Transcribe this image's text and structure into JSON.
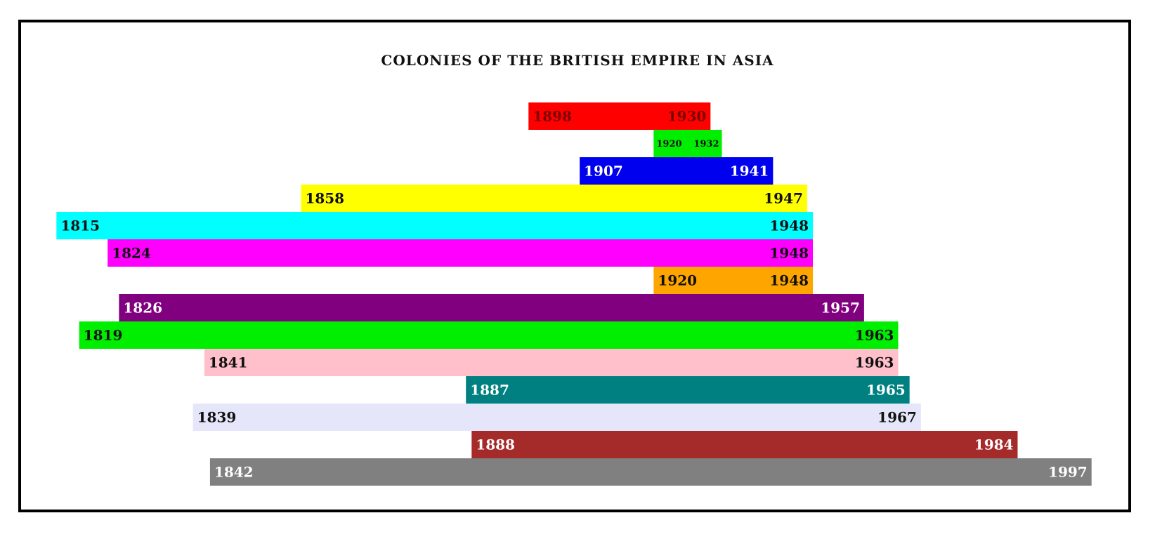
{
  "chart_data": {
    "type": "bar",
    "title": "COLONIES OF THE BRITISH EMPIRE IN ASIA",
    "xlabel": "",
    "ylabel": "",
    "xlim": [
      1811.5,
      2000
    ],
    "grid": false,
    "legend": "none",
    "bars": [
      {
        "start": 1898,
        "end": 1930,
        "start_label": "1898",
        "end_label": "1930",
        "color": "#ff0000",
        "label_color": "#7a0000",
        "label_size": "large"
      },
      {
        "start": 1920,
        "end": 1932,
        "start_label": "1920",
        "end_label": "1932",
        "color": "#00ee00",
        "label_color": "#111111",
        "label_size": "small"
      },
      {
        "start": 1907,
        "end": 1941,
        "start_label": "1907",
        "end_label": "1941",
        "color": "#0000ee",
        "label_color": "#ffffff",
        "label_size": "large"
      },
      {
        "start": 1858,
        "end": 1947,
        "start_label": "1858",
        "end_label": "1947",
        "color": "#ffff00",
        "label_color": "#111111",
        "label_size": "large"
      },
      {
        "start": 1815,
        "end": 1948,
        "start_label": "1815",
        "end_label": "1948",
        "color": "#00ffff",
        "label_color": "#111111",
        "label_size": "large"
      },
      {
        "start": 1824,
        "end": 1948,
        "start_label": "1824",
        "end_label": "1948",
        "color": "#ff00ff",
        "label_color": "#111111",
        "label_size": "large"
      },
      {
        "start": 1920,
        "end": 1948,
        "start_label": "1920",
        "end_label": "1948",
        "color": "#ffa500",
        "label_color": "#111111",
        "label_size": "large"
      },
      {
        "start": 1826,
        "end": 1957,
        "start_label": "1826",
        "end_label": "1957",
        "color": "#800080",
        "label_color": "#ffffff",
        "label_size": "large"
      },
      {
        "start": 1819,
        "end": 1963,
        "start_label": "1819",
        "end_label": "1963",
        "color": "#00ee00",
        "label_color": "#111111",
        "label_size": "large"
      },
      {
        "start": 1841,
        "end": 1963,
        "start_label": "1841",
        "end_label": "1963",
        "color": "#ffc0cb",
        "label_color": "#111111",
        "label_size": "large"
      },
      {
        "start": 1887,
        "end": 1965,
        "start_label": "1887",
        "end_label": "1965",
        "color": "#008080",
        "label_color": "#ffffff",
        "label_size": "large"
      },
      {
        "start": 1839,
        "end": 1967,
        "start_label": "1839",
        "end_label": "1967",
        "color": "#e6e6fa",
        "label_color": "#111111",
        "label_size": "large"
      },
      {
        "start": 1888,
        "end": 1984,
        "start_label": "1888",
        "end_label": "1984",
        "color": "#a52a2a",
        "label_color": "#ffffff",
        "label_size": "large"
      },
      {
        "start": 1842,
        "end": 1997,
        "start_label": "1842",
        "end_label": "1997",
        "color": "#808080",
        "label_color": "#ffffff",
        "label_size": "large"
      }
    ]
  }
}
